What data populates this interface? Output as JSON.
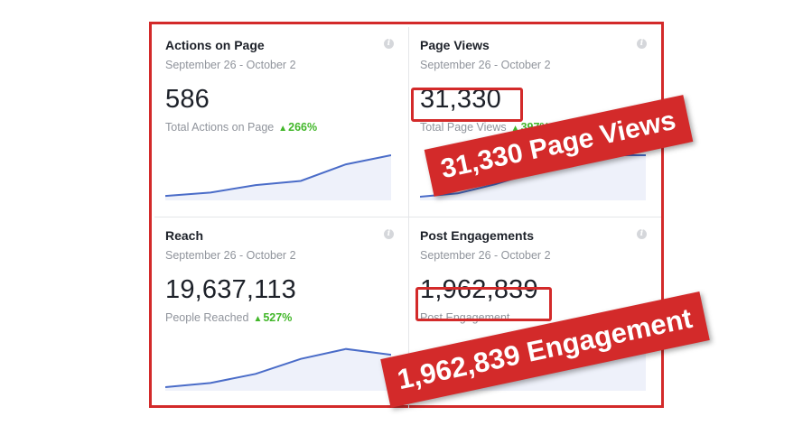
{
  "cards": [
    {
      "title": "Actions on Page",
      "date_range": "September 26 - October 2",
      "value": "586",
      "sub_label": "Total Actions on Page",
      "change": "266%",
      "trend": [
        2,
        10,
        28,
        38,
        78,
        100
      ]
    },
    {
      "title": "Page Views",
      "date_range": "September 26 - October 2",
      "value": "31,330",
      "sub_label": "Total Page Views",
      "change": "397%",
      "trend": [
        0,
        8,
        30,
        58,
        85,
        100,
        100
      ]
    },
    {
      "title": "Reach",
      "date_range": "September 26 - October 2",
      "value": "19,637,113",
      "sub_label": "People Reached",
      "change": "527%",
      "trend": [
        0,
        10,
        32,
        68,
        92,
        78
      ]
    },
    {
      "title": "Post Engagements",
      "date_range": "September 26 - October 2",
      "value": "1,962,839",
      "sub_label": "Post Engagement",
      "change": "",
      "trend": [
        0,
        6,
        30,
        66,
        100,
        86
      ]
    }
  ],
  "annotations": {
    "page_views_banner": "31,330 Page Views",
    "engagement_banner": "1,962,839 Engagement"
  },
  "colors": {
    "highlight": "#d32a2a",
    "positive": "#42b72a",
    "sparkline": "#4a6cc8"
  },
  "icons": {
    "info": "info-icon",
    "trend_up": "triangle-up-icon"
  }
}
